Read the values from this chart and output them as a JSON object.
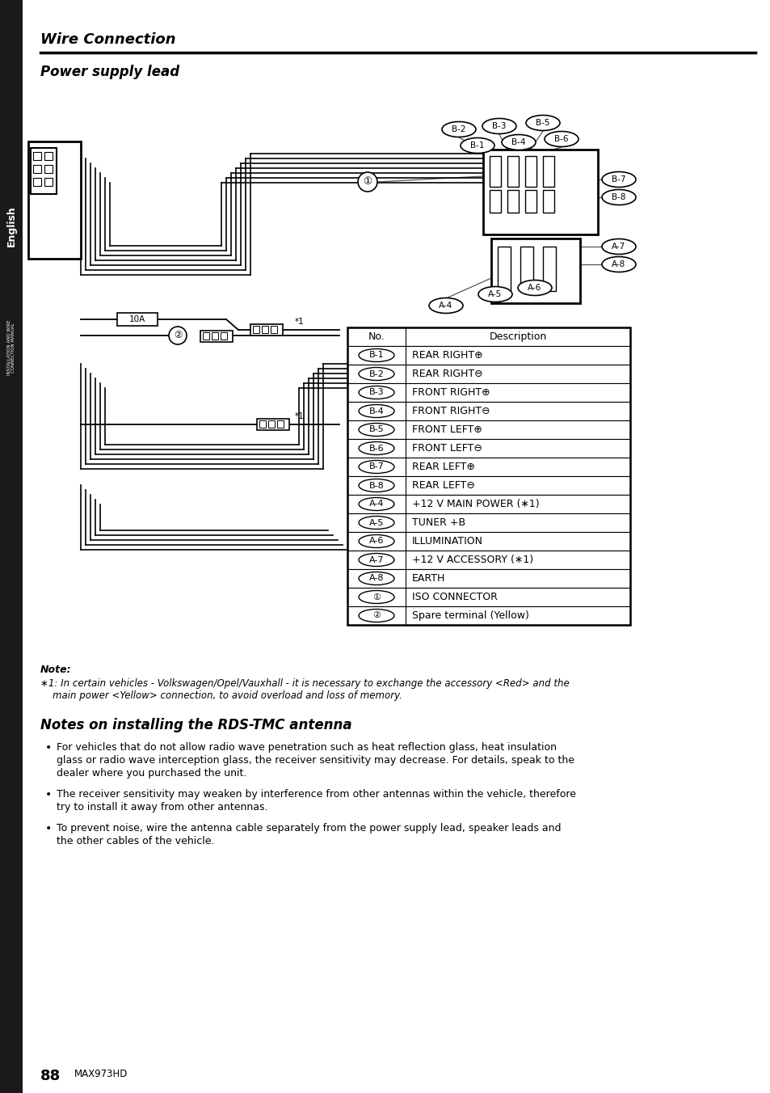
{
  "title": "Wire Connection",
  "subtitle": "Power supply lead",
  "sidebar_text": "English",
  "table_rows": [
    [
      "B-1",
      "REAR RIGHT⊕"
    ],
    [
      "B-2",
      "REAR RIGHT⊖"
    ],
    [
      "B-3",
      "FRONT RIGHT⊕"
    ],
    [
      "B-4",
      "FRONT RIGHT⊖"
    ],
    [
      "B-5",
      "FRONT LEFT⊕"
    ],
    [
      "B-6",
      "FRONT LEFT⊖"
    ],
    [
      "B-7",
      "REAR LEFT⊕"
    ],
    [
      "B-8",
      "REAR LEFT⊖"
    ],
    [
      "A-4",
      "+12 V MAIN POWER (∗1)"
    ],
    [
      "A-5",
      "TUNER +B"
    ],
    [
      "A-6",
      "ILLUMINATION"
    ],
    [
      "A-7",
      "+12 V ACCESSORY (∗1)"
    ],
    [
      "A-8",
      "EARTH"
    ],
    [
      "①",
      "ISO CONNECTOR"
    ],
    [
      "②",
      "Spare terminal (Yellow)"
    ]
  ],
  "note_title": "Note:",
  "note_line1": "∗1: In certain vehicles - Volkswagen/Opel/Vauxhall - it is necessary to exchange the accessory <Red> and the",
  "note_line2": "    main power <Yellow> connection, to avoid overload and loss of memory.",
  "section_title": "Notes on installing the RDS-TMC antenna",
  "bullet1_lines": [
    "For vehicles that do not allow radio wave penetration such as heat reflection glass, heat insulation",
    "glass or radio wave interception glass, the receiver sensitivity may decrease. For details, speak to the",
    "dealer where you purchased the unit."
  ],
  "bullet2_lines": [
    "The receiver sensitivity may weaken by interference from other antennas within the vehicle, therefore",
    "try to install it away from other antennas."
  ],
  "bullet3_lines": [
    "To prevent noise, wire the antenna cable separately from the power supply lead, speaker leads and",
    "the other cables of the vehicle."
  ],
  "page_number": "88",
  "model": "MAX973HD",
  "bg_color": "#ffffff",
  "text_color": "#000000",
  "sidebar_bg": "#1a1a1a"
}
